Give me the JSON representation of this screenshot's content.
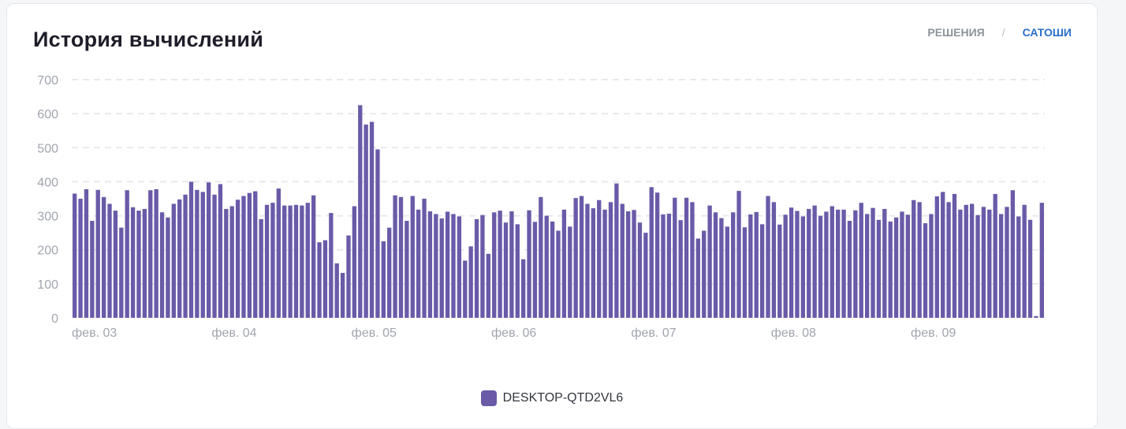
{
  "header": {
    "title": "История вычислений",
    "toggle": {
      "options": [
        "РЕШЕНИЯ",
        "САТОШИ"
      ],
      "separator": "/",
      "active_index": 1
    }
  },
  "colors": {
    "bar": "#6a5aa8",
    "grid": "#e8e9ec",
    "axis_text": "#a0a5ad",
    "active": "#2a6fc9",
    "inactive": "#8d939c"
  },
  "chart_data": {
    "type": "bar",
    "title": "",
    "xlabel": "",
    "ylabel": "",
    "ylim": [
      0,
      700
    ],
    "yticks": [
      0,
      100,
      200,
      300,
      400,
      500,
      600,
      700
    ],
    "grid": true,
    "legend_position": "bottom",
    "x_tick_labels": [
      "фев. 03",
      "фев. 04",
      "фев. 05",
      "фев. 06",
      "фев. 07",
      "фев. 08",
      "фев. 09"
    ],
    "x_tick_bar_index": [
      0,
      24,
      48,
      72,
      96,
      120,
      144
    ],
    "series": [
      {
        "name": "DESKTOP-QTD2VL6",
        "values": [
          365,
          350,
          378,
          285,
          376,
          355,
          335,
          315,
          265,
          375,
          325,
          315,
          320,
          375,
          378,
          310,
          295,
          335,
          348,
          362,
          400,
          376,
          370,
          398,
          362,
          393,
          320,
          328,
          347,
          358,
          367,
          372,
          290,
          332,
          338,
          380,
          330,
          330,
          332,
          330,
          338,
          360,
          222,
          228,
          308,
          160,
          132,
          242,
          328,
          625,
          568,
          576,
          495,
          225,
          265,
          360,
          355,
          285,
          358,
          318,
          350,
          313,
          305,
          292,
          312,
          305,
          298,
          168,
          210,
          290,
          302,
          188,
          310,
          315,
          280,
          313,
          275,
          172,
          316,
          282,
          355,
          300,
          283,
          256,
          318,
          268,
          352,
          358,
          335,
          322,
          346,
          318,
          340,
          395,
          335,
          313,
          317,
          280,
          250,
          384,
          368,
          304,
          306,
          353,
          287,
          353,
          340,
          233,
          256,
          330,
          310,
          293,
          268,
          310,
          373,
          266,
          304,
          311,
          275,
          358,
          340,
          274,
          303,
          324,
          314,
          298,
          320,
          330,
          300,
          312,
          328,
          318,
          318,
          285,
          316,
          338,
          305,
          323,
          288,
          320,
          283,
          295,
          312,
          303,
          346,
          340,
          278,
          305,
          357,
          370,
          340,
          364,
          318,
          332,
          335,
          302,
          326,
          318,
          364,
          305,
          326,
          375,
          298,
          332,
          288,
          5,
          338
        ]
      }
    ]
  }
}
